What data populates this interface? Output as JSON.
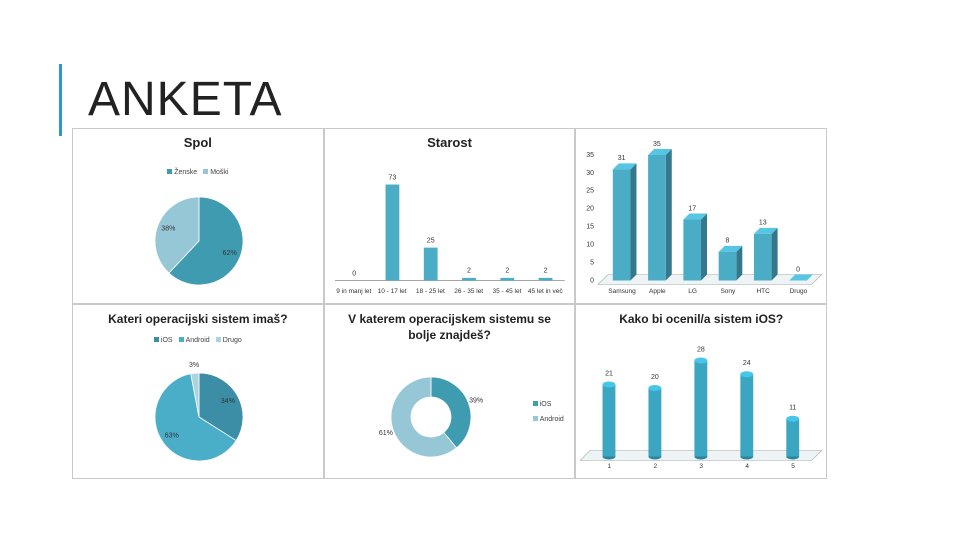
{
  "title": "ANKETA",
  "chart_data": [
    {
      "type": "pie",
      "title": "Spol",
      "categories": [
        "Ženske",
        "Moški"
      ],
      "values": [
        62,
        38
      ],
      "value_labels": [
        "62%",
        "38%"
      ],
      "colors": [
        "#3e9bb0",
        "#96c7d6"
      ],
      "legend": "top"
    },
    {
      "type": "bar",
      "title": "Starost",
      "categories": [
        "9 in manj let",
        "10 - 17 let",
        "18 - 25 let",
        "26 - 35 let",
        "35 - 45 let",
        "45 let in več"
      ],
      "values": [
        0,
        73,
        25,
        2,
        2,
        2
      ],
      "color": "#4bacc6",
      "bar_style": "flat"
    },
    {
      "type": "bar",
      "categories": [
        "Samsung",
        "Apple",
        "LG",
        "Sony",
        "HTC",
        "Drugo"
      ],
      "values": [
        31,
        35,
        17,
        8,
        13,
        0
      ],
      "color": "#4bacc6",
      "bar_style": "3d",
      "ylim": [
        0,
        35
      ],
      "yticks": [
        0,
        5,
        10,
        15,
        20,
        25,
        30,
        35
      ]
    },
    {
      "type": "pie",
      "title": "Kateri operacijski sistem imaš?",
      "categories": [
        "iOS",
        "Android",
        "Drugo"
      ],
      "values": [
        34,
        63,
        3
      ],
      "value_labels": [
        "34%",
        "63%",
        "3%"
      ],
      "colors": [
        "#3b8ea5",
        "#4aaec9",
        "#a9d4e0"
      ],
      "legend": "top"
    },
    {
      "type": "donut",
      "title": "V katerem operacijskem sistemu se bolje znajdeš?",
      "categories": [
        "iOS",
        "Android"
      ],
      "values": [
        39,
        61
      ],
      "value_labels": [
        "39%",
        "61%"
      ],
      "colors": [
        "#3e9bb0",
        "#96c7d6"
      ],
      "legend": "right"
    },
    {
      "type": "bar",
      "title": "Kako bi ocenil/a sistem iOS?",
      "categories": [
        "1",
        "2",
        "3",
        "4",
        "5"
      ],
      "values": [
        21,
        20,
        28,
        24,
        11
      ],
      "color": "#3aa6c2",
      "bar_style": "cylinder"
    }
  ]
}
